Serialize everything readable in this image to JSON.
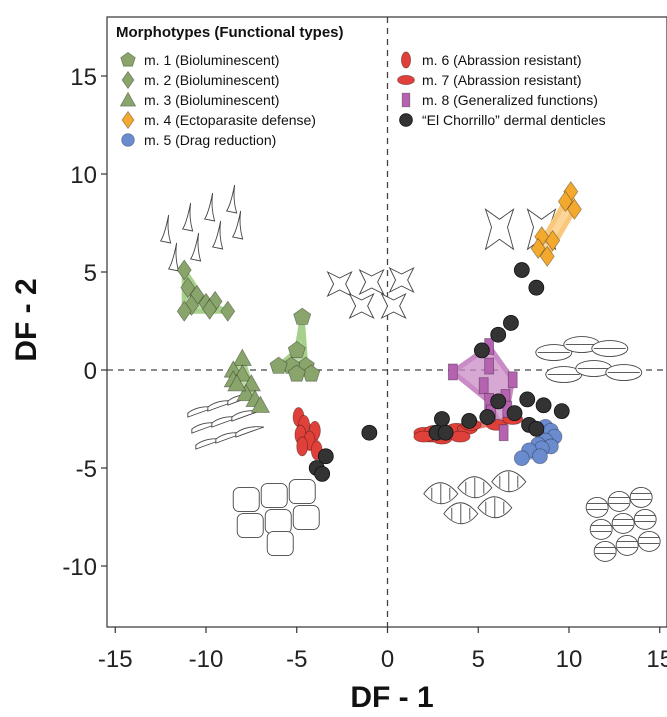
{
  "chart_data": {
    "type": "scatter",
    "xlabel": "DF - 1",
    "ylabel": "DF - 2",
    "xlim": [
      -17,
      15.5
    ],
    "ylim": [
      -13,
      18
    ],
    "xticks": [
      "-15",
      "-10",
      "-5",
      "0",
      "5",
      "10",
      "15"
    ],
    "xtick_values": [
      -15,
      -10,
      -5,
      0,
      5,
      10,
      15
    ],
    "yticks": [
      "15",
      "10",
      "5",
      "0",
      "-5",
      "-10"
    ],
    "ytick_values": [
      15,
      10,
      5,
      0,
      -5,
      -10
    ],
    "reference_lines": {
      "x": 0,
      "y": 0,
      "style": "dashed"
    },
    "legend": {
      "title": "Morphotypes (Functional types)",
      "placement": "top"
    },
    "series": [
      {
        "name": "m. 1 (Bioluminescent)",
        "shape": "pentagon",
        "color": "#8AA56B",
        "points": [
          [
            -4.7,
            2.7
          ],
          [
            -5.0,
            1.0
          ],
          [
            -4.5,
            0.2
          ],
          [
            -5.3,
            0.2
          ],
          [
            -6.0,
            0.2
          ],
          [
            -4.2,
            -0.2
          ],
          [
            -5.0,
            -0.2
          ]
        ]
      },
      {
        "name": "m. 2 (Bioluminescent)",
        "shape": "diamond",
        "color": "#8AA56B",
        "points": [
          [
            -11.2,
            5.1
          ],
          [
            -11.0,
            4.2
          ],
          [
            -10.5,
            3.8
          ],
          [
            -10.0,
            3.4
          ],
          [
            -10.8,
            3.3
          ],
          [
            -9.5,
            3.5
          ],
          [
            -9.8,
            3.1
          ],
          [
            -8.8,
            3.0
          ],
          [
            -11.2,
            3.0
          ]
        ]
      },
      {
        "name": "m. 3 (Bioluminescent)",
        "shape": "triangle",
        "color": "#8AA56B",
        "points": [
          [
            -8.0,
            0.6
          ],
          [
            -8.5,
            0.0
          ],
          [
            -8.0,
            -0.2
          ],
          [
            -8.5,
            -0.5
          ],
          [
            -7.5,
            -0.7
          ],
          [
            -7.8,
            -1.2
          ],
          [
            -7.3,
            -1.5
          ],
          [
            -7.0,
            -1.8
          ],
          [
            -8.3,
            -0.7
          ]
        ]
      },
      {
        "name": "m. 4 (Ectoparasite defense)",
        "shape": "diamond",
        "color": "#F2A92E",
        "points": [
          [
            10.1,
            9.1
          ],
          [
            9.8,
            8.6
          ],
          [
            10.3,
            8.2
          ],
          [
            8.5,
            6.8
          ],
          [
            9.1,
            6.6
          ],
          [
            8.3,
            6.2
          ],
          [
            8.8,
            5.8
          ]
        ]
      },
      {
        "name": "m. 5 (Drag reduction)",
        "shape": "circle",
        "color": "#6A8CCF",
        "points": [
          [
            8.7,
            -2.9
          ],
          [
            9.0,
            -3.1
          ],
          [
            9.2,
            -3.4
          ],
          [
            8.7,
            -3.6
          ],
          [
            8.3,
            -3.8
          ],
          [
            9.0,
            -3.9
          ],
          [
            8.5,
            -4.0
          ],
          [
            7.8,
            -4.1
          ],
          [
            8.4,
            -4.4
          ],
          [
            7.4,
            -4.5
          ]
        ]
      },
      {
        "name": "m. 6 (Abrassion resistant)",
        "shape": "ellipse-v",
        "color": "#E0403A",
        "points": [
          [
            -4.9,
            -2.4
          ],
          [
            -4.6,
            -2.8
          ],
          [
            -4.0,
            -3.1
          ],
          [
            -4.8,
            -3.3
          ],
          [
            -4.3,
            -3.6
          ],
          [
            -4.7,
            -3.9
          ],
          [
            -3.9,
            -4.1
          ]
        ]
      },
      {
        "name": "m. 7 (Abrassion resistant)",
        "shape": "ellipse-h",
        "color": "#E0403A",
        "points": [
          [
            2.0,
            -3.2
          ],
          [
            2.6,
            -3.1
          ],
          [
            3.2,
            -3.1
          ],
          [
            3.8,
            -3.0
          ],
          [
            4.4,
            -3.0
          ],
          [
            2.4,
            -3.4
          ],
          [
            3.0,
            -3.5
          ],
          [
            4.0,
            -3.4
          ],
          [
            4.6,
            -2.8
          ],
          [
            6.0,
            -2.8
          ],
          [
            6.9,
            -2.5
          ],
          [
            2.0,
            -3.4
          ]
        ]
      },
      {
        "name": "m. 8 (Generalized functions)",
        "shape": "rect",
        "color": "#B562B0",
        "points": [
          [
            5.6,
            1.2
          ],
          [
            5.6,
            0.2
          ],
          [
            3.6,
            -0.1
          ],
          [
            5.3,
            -0.8
          ],
          [
            6.9,
            -0.5
          ],
          [
            6.5,
            -1.4
          ],
          [
            5.6,
            -1.6
          ],
          [
            6.6,
            -2.0
          ],
          [
            6.4,
            -3.2
          ],
          [
            5.7,
            -2.2
          ]
        ]
      },
      {
        "name": "“El Chorrillo” dermal denticles",
        "shape": "circle",
        "color": "#333333",
        "points": [
          [
            7.4,
            5.1
          ],
          [
            8.2,
            4.2
          ],
          [
            6.8,
            2.4
          ],
          [
            6.1,
            1.8
          ],
          [
            5.2,
            1.0
          ],
          [
            6.1,
            -1.6
          ],
          [
            7.7,
            -1.5
          ],
          [
            8.6,
            -1.8
          ],
          [
            9.6,
            -2.1
          ],
          [
            7.0,
            -2.2
          ],
          [
            5.5,
            -2.4
          ],
          [
            4.5,
            -2.6
          ],
          [
            3.0,
            -2.5
          ],
          [
            2.7,
            -3.2
          ],
          [
            3.2,
            -3.2
          ],
          [
            7.8,
            -2.8
          ],
          [
            8.2,
            -3.0
          ],
          [
            -3.4,
            -4.4
          ],
          [
            -3.9,
            -5.0
          ],
          [
            -3.6,
            -5.3
          ],
          [
            -1.0,
            -3.2
          ]
        ]
      }
    ],
    "hulls": [
      {
        "series_index": 0,
        "color": "#A8D08D",
        "points": [
          [
            -4.7,
            2.7
          ],
          [
            -5.0,
            1.0
          ],
          [
            -6.0,
            0.2
          ],
          [
            -5.0,
            -0.2
          ],
          [
            -4.2,
            -0.2
          ],
          [
            -4.5,
            0.2
          ]
        ]
      },
      {
        "series_index": 1,
        "color": "#A8D08D",
        "points": [
          [
            -11.2,
            5.1
          ],
          [
            -11.2,
            3.0
          ],
          [
            -8.8,
            3.0
          ],
          [
            -10.0,
            3.4
          ]
        ]
      },
      {
        "series_index": 2,
        "color": "#A8D08D",
        "points": [
          [
            -8.0,
            0.6
          ],
          [
            -8.5,
            0.0
          ],
          [
            -8.5,
            -0.5
          ],
          [
            -7.0,
            -1.8
          ],
          [
            -7.3,
            -1.5
          ]
        ]
      },
      {
        "series_index": 3,
        "color": "#F9C87A",
        "points": [
          [
            10.1,
            9.1
          ],
          [
            10.3,
            8.2
          ],
          [
            8.8,
            5.8
          ],
          [
            8.3,
            6.2
          ],
          [
            9.8,
            8.6
          ]
        ]
      },
      {
        "series_index": 5,
        "color": "#EE7A72",
        "points": [
          [
            -4.9,
            -2.4
          ],
          [
            -4.0,
            -3.1
          ],
          [
            -3.9,
            -4.1
          ],
          [
            -4.7,
            -3.9
          ],
          [
            -4.8,
            -3.3
          ]
        ]
      },
      {
        "series_index": 6,
        "color": "#EE7A72",
        "points": [
          [
            2.0,
            -3.2
          ],
          [
            6.9,
            -2.5
          ],
          [
            4.4,
            -3.0
          ],
          [
            3.0,
            -3.5
          ],
          [
            2.0,
            -3.4
          ]
        ]
      },
      {
        "series_index": 7,
        "color": "#C98BC5",
        "points": [
          [
            5.6,
            1.2
          ],
          [
            3.6,
            -0.1
          ],
          [
            5.6,
            -1.6
          ],
          [
            6.4,
            -3.2
          ],
          [
            6.6,
            -2.0
          ],
          [
            6.9,
            -0.5
          ]
        ]
      },
      {
        "series_index": 4,
        "color": "#9DB3E0",
        "points": [
          [
            8.7,
            -2.9
          ],
          [
            9.2,
            -3.4
          ],
          [
            8.4,
            -4.4
          ],
          [
            7.4,
            -4.5
          ],
          [
            7.8,
            -4.1
          ]
        ]
      }
    ],
    "illustrations": [
      {
        "name": "m2-denticle-drawing",
        "x": -12.5,
        "y": 7.5
      },
      {
        "name": "m1-denticle-drawing",
        "x": -3.3,
        "y": 5.0
      },
      {
        "name": "m4-denticle-drawing",
        "x": 5.4,
        "y": 8.2
      },
      {
        "name": "m8-denticle-drawing",
        "x": 8.5,
        "y": 1.3
      },
      {
        "name": "m3-denticle-drawing",
        "x": -11.0,
        "y": -2.2
      },
      {
        "name": "m6-denticle-drawing",
        "x": -8.5,
        "y": -6.0
      },
      {
        "name": "m7-denticle-drawing",
        "x": 2.0,
        "y": -5.6
      },
      {
        "name": "m5-denticle-drawing",
        "x": 11.0,
        "y": -6.5
      }
    ]
  }
}
